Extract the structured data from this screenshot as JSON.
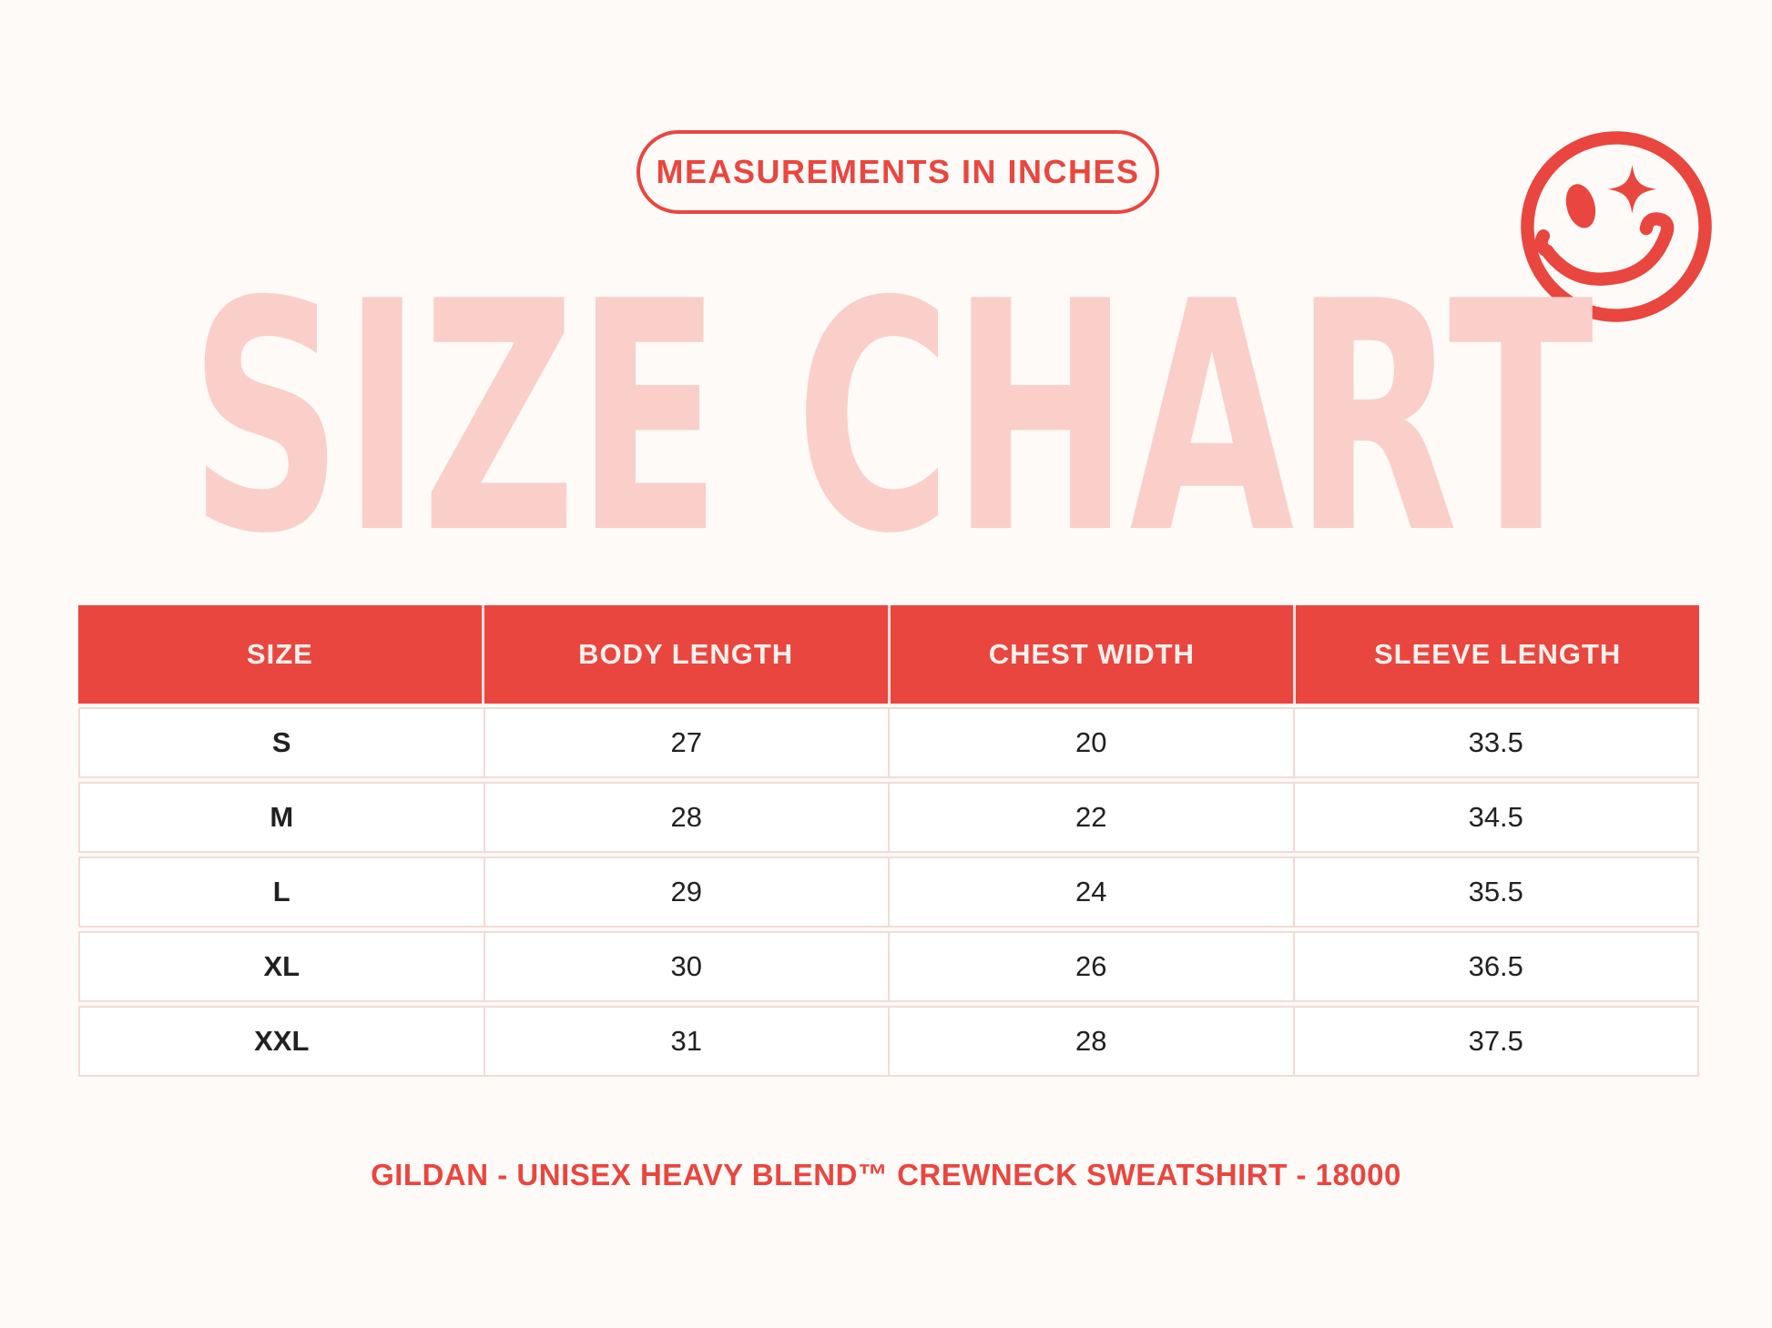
{
  "page": {
    "colors": {
      "accent_red": "#E9463F",
      "title_pink": "#FACFC9",
      "border_pink": "#F3DAD6",
      "background": "#FDFAF8",
      "cell_background": "#FFFFFF",
      "text_dark": "#212121",
      "header_text": "#FCF1EE"
    }
  },
  "icons": {
    "smiley": "winking-smiley-face-icon"
  },
  "chart_data": {
    "type": "table",
    "title": "SIZE CHART",
    "badge": "MEASUREMENTS IN INCHES",
    "caption": "GILDAN - UNISEX HEAVY BLEND™ CREWNECK SWEATSHIRT - 18000",
    "columns": [
      "SIZE",
      "BODY LENGTH",
      "CHEST WIDTH",
      "SLEEVE LENGTH"
    ],
    "rows": [
      [
        "S",
        27,
        20,
        33.5
      ],
      [
        "M",
        28,
        22,
        34.5
      ],
      [
        "L",
        29,
        24,
        35.5
      ],
      [
        "XL",
        30,
        26,
        36.5
      ],
      [
        "XXL",
        31,
        28,
        37.5
      ]
    ],
    "units": "inches",
    "layout": {
      "grid": "4 equal columns",
      "header_background": "#E9463F"
    }
  }
}
